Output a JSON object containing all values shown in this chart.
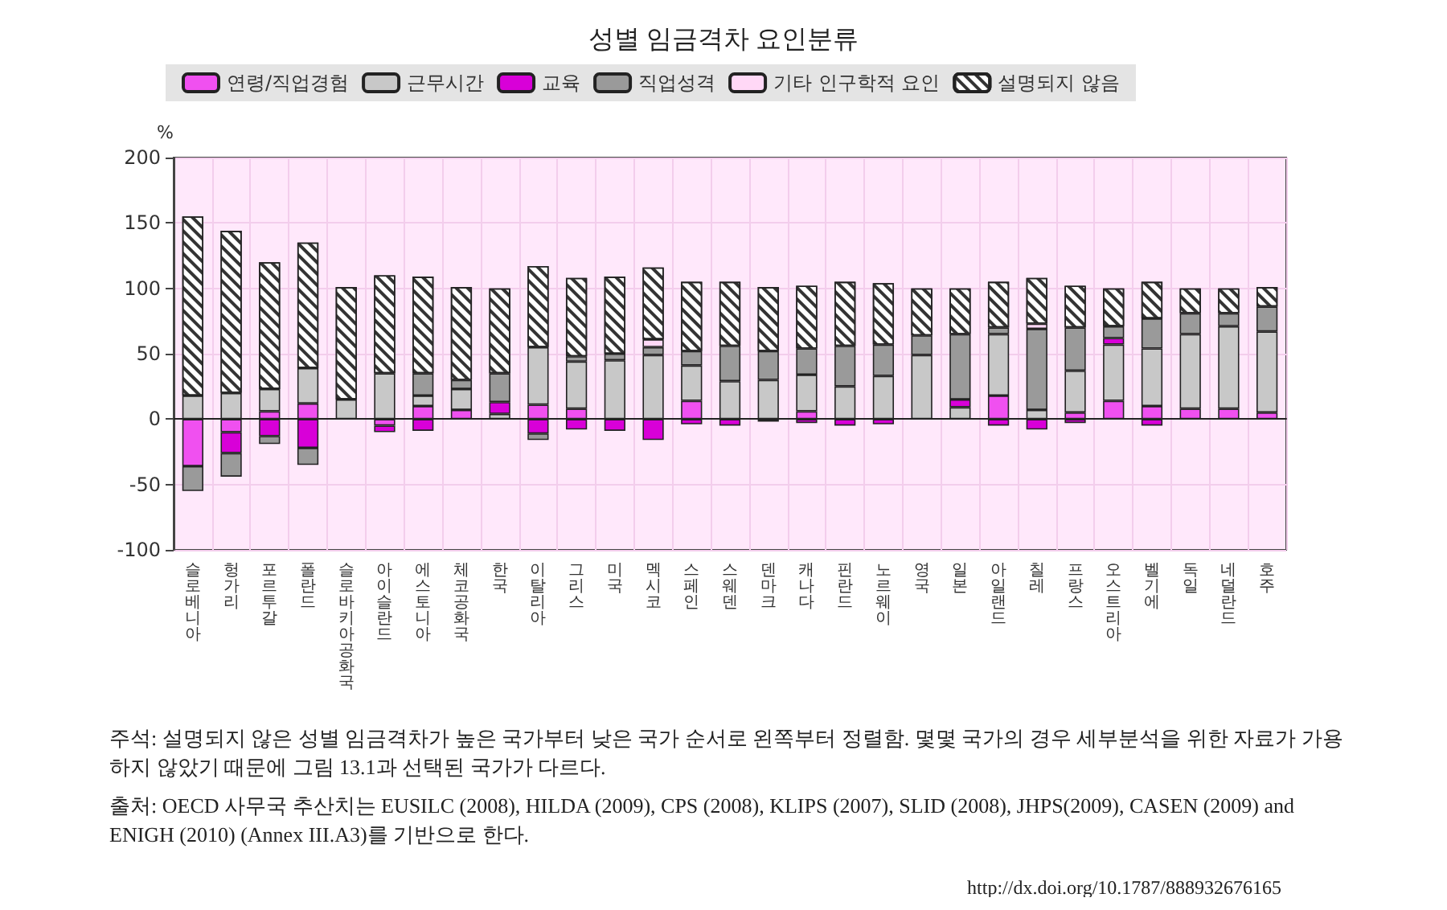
{
  "chart_data": {
    "type": "bar",
    "title": "성별 임금격차 요인분류",
    "ylabel": "%",
    "stacked": true,
    "legend": "top",
    "grid": true,
    "categories": [
      "슬로베니아",
      "헝가리",
      "포르투갈",
      "폴란드",
      "슬로바키아공화국",
      "아이슬란드",
      "에스토니아",
      "체코공화국",
      "한국",
      "이탈리아",
      "그리스",
      "미국",
      "멕시코",
      "스페인",
      "스웨덴",
      "덴마크",
      "캐나다",
      "핀란드",
      "노르웨이",
      "영국",
      "일본",
      "아일랜드",
      "칠레",
      "프랑스",
      "오스트리아",
      "벨기에",
      "독일",
      "네덜란드",
      "호주"
    ],
    "series": [
      {
        "name": "연령/직업경험",
        "color": "#f050f0",
        "values": [
          -36,
          -10,
          6,
          12,
          null,
          -5,
          10,
          7,
          null,
          11,
          8,
          null,
          null,
          14,
          null,
          null,
          6,
          null,
          null,
          null,
          null,
          18,
          null,
          5,
          14,
          10,
          8,
          8,
          5
        ]
      },
      {
        "name": "근무시간",
        "color": "#c8c8c8",
        "values": [
          18,
          20,
          17,
          27,
          15,
          35,
          8,
          16,
          4,
          44,
          36,
          45,
          49,
          27,
          29,
          30,
          28,
          25,
          33,
          49,
          9,
          47,
          7,
          32,
          43,
          44,
          57,
          63,
          62
        ]
      },
      {
        "name": "교육",
        "color": "#d800d8",
        "values": [
          null,
          -16,
          -13,
          -22,
          null,
          -5,
          -9,
          null,
          9,
          -11,
          -8,
          -9,
          -16,
          -4,
          -5,
          -2,
          -3,
          -5,
          -4,
          null,
          6,
          -5,
          -8,
          -3,
          5,
          -5,
          null,
          null,
          null
        ]
      },
      {
        "name": "직업성격",
        "color": "#9a9a9a",
        "values": [
          -19,
          -18,
          -6,
          -13,
          null,
          null,
          17,
          7,
          22,
          -5,
          4,
          5,
          6,
          11,
          27,
          22,
          20,
          31,
          24,
          15,
          50,
          5,
          62,
          33,
          9,
          23,
          16,
          10,
          19
        ]
      },
      {
        "name": "기타 인구학적 요인",
        "color": "#ffd8f6",
        "values": [
          null,
          null,
          null,
          null,
          null,
          null,
          null,
          null,
          null,
          null,
          null,
          null,
          6,
          null,
          null,
          null,
          null,
          null,
          null,
          null,
          null,
          null,
          4,
          null,
          null,
          null,
          null,
          null,
          null
        ]
      },
      {
        "name": "설명되지 않음",
        "color": "#ffffff",
        "values": [
          137,
          124,
          97,
          96,
          86,
          75,
          74,
          71,
          65,
          62,
          60,
          59,
          55,
          53,
          49,
          49,
          48,
          49,
          47,
          36,
          35,
          35,
          35,
          32,
          29,
          28,
          19,
          19,
          15
        ]
      }
    ],
    "ylim": [
      -100,
      200
    ],
    "yticks": [
      -100,
      -50,
      0,
      50,
      100,
      150,
      200
    ],
    "annotations": [
      "주석: 설명되지 않은 성별 임금격차가 높은 국가부터 낮은 국가 순서로 왼쪽부터 정렬함. 몇몇 국가의 경우 세부분석을 위한 자료가 가용하지 않았기 때문에 그림 13.1과 선택된 국가가 다르다.",
      "출처: OECD 사무국 추산치는 EUSILC (2008), HILDA (2009), CPS (2008), KLIPS (2007), SLID (2008), JHPS(2009), CASEN (2009) and ENIGH (2010) (Annex III.A3)를 기반으로 한다.",
      "http://dx.doi.org/10.1787/888932676165"
    ]
  }
}
